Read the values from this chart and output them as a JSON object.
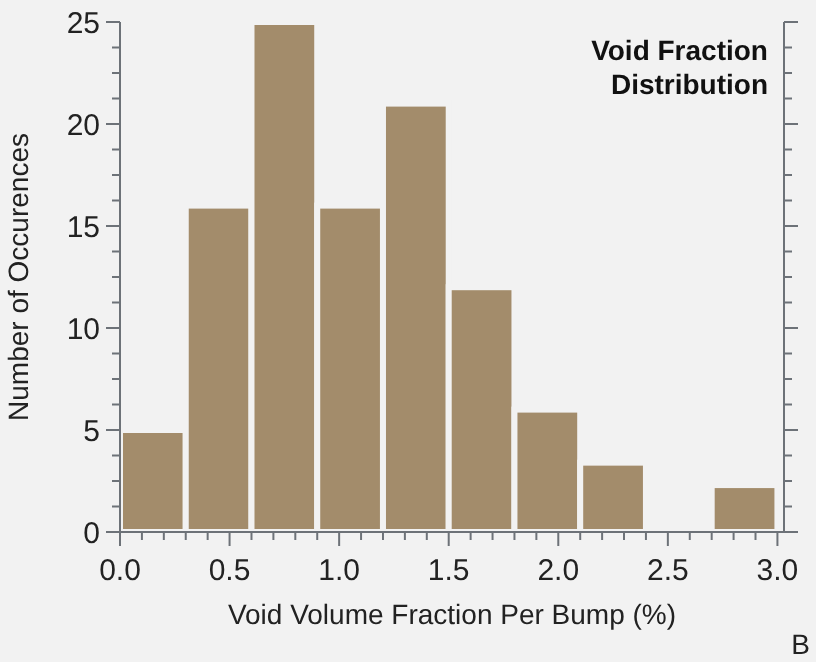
{
  "chart_data": {
    "type": "histogram",
    "title": "Void Fraction\nDistribution",
    "xlabel": "Void Volume Fraction Per Bump (%)",
    "ylabel": "Number of Occurences",
    "annotations": [
      "B"
    ],
    "bins": [
      0,
      0.3,
      0.6,
      0.9,
      1.2,
      1.5,
      1.8,
      2.1,
      2.4,
      2.7,
      3.0
    ],
    "values": [
      5,
      16,
      25,
      16,
      21,
      12,
      6,
      3.4,
      0,
      2.3
    ],
    "color": "#a38c6b",
    "xlim": [
      0,
      3.03
    ],
    "ylim": [
      0,
      25
    ],
    "xticks": [
      {
        "value": 0,
        "label": "0.0"
      },
      {
        "value": 0.1,
        "label": null
      },
      {
        "value": 0.2,
        "label": null
      },
      {
        "value": 0.3,
        "label": null
      },
      {
        "value": 0.4,
        "label": null
      },
      {
        "value": 0.5,
        "label": "0.5"
      },
      {
        "value": 0.6,
        "label": null
      },
      {
        "value": 0.7,
        "label": null
      },
      {
        "value": 0.8,
        "label": null
      },
      {
        "value": 0.9,
        "label": null
      },
      {
        "value": 1,
        "label": "1.0"
      },
      {
        "value": 1.1,
        "label": null
      },
      {
        "value": 1.2,
        "label": null
      },
      {
        "value": 1.3,
        "label": null
      },
      {
        "value": 1.4,
        "label": null
      },
      {
        "value": 1.5,
        "label": "1.5"
      },
      {
        "value": 1.6,
        "label": null
      },
      {
        "value": 1.7,
        "label": null
      },
      {
        "value": 1.8,
        "label": null
      },
      {
        "value": 1.9,
        "label": null
      },
      {
        "value": 2,
        "label": "2.0"
      },
      {
        "value": 2.1,
        "label": null
      },
      {
        "value": 2.2,
        "label": null
      },
      {
        "value": 2.3,
        "label": null
      },
      {
        "value": 2.4,
        "label": null
      },
      {
        "value": 2.5,
        "label": "2.5"
      },
      {
        "value": 2.6,
        "label": null
      },
      {
        "value": 2.7,
        "label": null
      },
      {
        "value": 2.8,
        "label": null
      },
      {
        "value": 2.9,
        "label": null
      },
      {
        "value": 3,
        "label": "3.0"
      }
    ],
    "yticks": [
      0,
      {
        "value": 1.25,
        "label": null
      },
      {
        "value": 2.5,
        "label": null
      },
      {
        "value": 3.75,
        "label": null
      },
      5,
      {
        "value": 6.25,
        "label": null
      },
      {
        "value": 7.5,
        "label": null
      },
      {
        "value": 8.75,
        "label": null
      },
      10,
      {
        "value": 11.25,
        "label": null
      },
      {
        "value": 12.5,
        "label": null
      },
      {
        "value": 13.75,
        "label": null
      },
      15,
      {
        "value": 16.25,
        "label": null
      },
      {
        "value": 17.5,
        "label": null
      },
      {
        "value": 18.75,
        "label": null
      },
      20,
      {
        "value": 21.25,
        "label": null
      },
      {
        "value": 22.5,
        "label": null
      },
      {
        "value": 23.75,
        "label": null
      },
      25
    ]
  }
}
